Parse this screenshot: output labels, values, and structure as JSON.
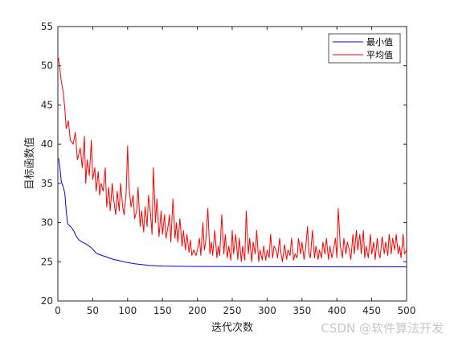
{
  "chart_data": {
    "type": "line",
    "title": "",
    "xlabel": "迭代次数",
    "ylabel": "目标函数值",
    "xlim": [
      0,
      500
    ],
    "ylim": [
      20,
      55
    ],
    "xticks": [
      "0",
      "50",
      "100",
      "150",
      "200",
      "250",
      "300",
      "350",
      "400",
      "450",
      "500"
    ],
    "yticks": [
      "20",
      "25",
      "30",
      "35",
      "40",
      "45",
      "50",
      "55"
    ],
    "grid": false,
    "legend_position": "top-right",
    "series": [
      {
        "name": "最小值",
        "color": "#0000ff",
        "points": [
          [
            1,
            38.2
          ],
          [
            3,
            37
          ],
          [
            5,
            35.2
          ],
          [
            8,
            34.5
          ],
          [
            10,
            33.7
          ],
          [
            12,
            31.5
          ],
          [
            14,
            29.8
          ],
          [
            17,
            29.6
          ],
          [
            20,
            29.3
          ],
          [
            23,
            28.9
          ],
          [
            26,
            28.3
          ],
          [
            30,
            27.8
          ],
          [
            35,
            27.5
          ],
          [
            40,
            27.3
          ],
          [
            45,
            27
          ],
          [
            50,
            26.6
          ],
          [
            55,
            26.1
          ],
          [
            60,
            25.9
          ],
          [
            70,
            25.6
          ],
          [
            80,
            25.3
          ],
          [
            90,
            25.1
          ],
          [
            100,
            24.9
          ],
          [
            110,
            24.75
          ],
          [
            120,
            24.65
          ],
          [
            130,
            24.55
          ],
          [
            140,
            24.5
          ],
          [
            150,
            24.45
          ],
          [
            170,
            24.42
          ],
          [
            200,
            24.4
          ],
          [
            250,
            24.38
          ],
          [
            300,
            24.37
          ],
          [
            400,
            24.35
          ],
          [
            500,
            24.35
          ]
        ]
      },
      {
        "name": "平均值",
        "color": "#ff0000",
        "points": [
          [
            1,
            51
          ],
          [
            3,
            49.5
          ],
          [
            5,
            48
          ],
          [
            8,
            46.5
          ],
          [
            10,
            44.5
          ],
          [
            12,
            42
          ],
          [
            15,
            43
          ],
          [
            18,
            40.5
          ],
          [
            22,
            40
          ],
          [
            25,
            41.5
          ],
          [
            28,
            38
          ],
          [
            32,
            39.5
          ],
          [
            35,
            37
          ],
          [
            38,
            41
          ],
          [
            40,
            35
          ],
          [
            42,
            38
          ],
          [
            45,
            36
          ],
          [
            48,
            40.5
          ],
          [
            50,
            35.5
          ],
          [
            53,
            37
          ],
          [
            55,
            34
          ],
          [
            58,
            36.5
          ],
          [
            60,
            33.5
          ],
          [
            62,
            35
          ],
          [
            65,
            34
          ],
          [
            68,
            37
          ],
          [
            70,
            32
          ],
          [
            73,
            34.5
          ],
          [
            75,
            31.5
          ],
          [
            78,
            35
          ],
          [
            80,
            33
          ],
          [
            83,
            31
          ],
          [
            85,
            34
          ],
          [
            88,
            31.5
          ],
          [
            90,
            35
          ],
          [
            93,
            32
          ],
          [
            95,
            31
          ],
          [
            98,
            34
          ],
          [
            100,
            39.8
          ],
          [
            102,
            34.5
          ],
          [
            105,
            32
          ],
          [
            108,
            33.5
          ],
          [
            110,
            30.5
          ],
          [
            113,
            31.5
          ],
          [
            115,
            34.5
          ],
          [
            118,
            29.5
          ],
          [
            120,
            31.5
          ],
          [
            123,
            28.8
          ],
          [
            125,
            32
          ],
          [
            128,
            29.5
          ],
          [
            130,
            33.5
          ],
          [
            133,
            31
          ],
          [
            135,
            28.5
          ],
          [
            137,
            37
          ],
          [
            140,
            30
          ],
          [
            142,
            33
          ],
          [
            145,
            28.2
          ],
          [
            148,
            31.5
          ],
          [
            150,
            28.5
          ],
          [
            153,
            31
          ],
          [
            155,
            28
          ],
          [
            158,
            29.5
          ],
          [
            160,
            31
          ],
          [
            162,
            27.5
          ],
          [
            165,
            33
          ],
          [
            168,
            28
          ],
          [
            170,
            30
          ],
          [
            172,
            27.5
          ],
          [
            175,
            30.5
          ],
          [
            178,
            27
          ],
          [
            180,
            29
          ],
          [
            183,
            26.5
          ],
          [
            185,
            28.5
          ],
          [
            188,
            26.2
          ],
          [
            190,
            27.8
          ],
          [
            192,
            25.8
          ],
          [
            195,
            26.5
          ],
          [
            198,
            25.8
          ],
          [
            200,
            26.5
          ],
          [
            203,
            28
          ],
          [
            205,
            25.8
          ],
          [
            208,
            30
          ],
          [
            210,
            26.5
          ],
          [
            212,
            27.5
          ],
          [
            215,
            31.8
          ],
          [
            218,
            26
          ],
          [
            220,
            27.5
          ],
          [
            222,
            25.8
          ],
          [
            225,
            29
          ],
          [
            228,
            25.5
          ],
          [
            230,
            27
          ],
          [
            232,
            25.8
          ],
          [
            235,
            31
          ],
          [
            238,
            26
          ],
          [
            240,
            28.5
          ],
          [
            243,
            25.5
          ],
          [
            245,
            27
          ],
          [
            248,
            25.2
          ],
          [
            250,
            29
          ],
          [
            252,
            26
          ],
          [
            255,
            28.5
          ],
          [
            258,
            25.3
          ],
          [
            260,
            28
          ],
          [
            263,
            25
          ],
          [
            265,
            27
          ],
          [
            268,
            25.2
          ],
          [
            270,
            31.5
          ],
          [
            273,
            26
          ],
          [
            275,
            28
          ],
          [
            278,
            25
          ],
          [
            280,
            27.5
          ],
          [
            283,
            26
          ],
          [
            285,
            29
          ],
          [
            288,
            25
          ],
          [
            290,
            26.5
          ],
          [
            293,
            25.2
          ],
          [
            295,
            27
          ],
          [
            298,
            25.2
          ],
          [
            300,
            26.5
          ],
          [
            303,
            25.5
          ],
          [
            305,
            28.5
          ],
          [
            308,
            25.5
          ],
          [
            310,
            27
          ],
          [
            313,
            26.5
          ],
          [
            315,
            25.5
          ],
          [
            318,
            28
          ],
          [
            320,
            26
          ],
          [
            322,
            25
          ],
          [
            325,
            27.2
          ],
          [
            328,
            25.3
          ],
          [
            330,
            26.5
          ],
          [
            333,
            25.8
          ],
          [
            335,
            28
          ],
          [
            338,
            25.2
          ],
          [
            340,
            26
          ],
          [
            343,
            25.5
          ],
          [
            345,
            28
          ],
          [
            348,
            26
          ],
          [
            350,
            27.5
          ],
          [
            353,
            25.3
          ],
          [
            355,
            26.5
          ],
          [
            358,
            29.5
          ],
          [
            360,
            26
          ],
          [
            362,
            25.5
          ],
          [
            365,
            29
          ],
          [
            368,
            25.5
          ],
          [
            370,
            27
          ],
          [
            373,
            25.3
          ],
          [
            375,
            26.5
          ],
          [
            378,
            25.5
          ],
          [
            380,
            27.5
          ],
          [
            383,
            26
          ],
          [
            385,
            28
          ],
          [
            388,
            25.3
          ],
          [
            390,
            27
          ],
          [
            393,
            25.5
          ],
          [
            395,
            26.5
          ],
          [
            398,
            28
          ],
          [
            400,
            25.5
          ],
          [
            402,
            31.8
          ],
          [
            405,
            27
          ],
          [
            408,
            25.5
          ],
          [
            410,
            28
          ],
          [
            413,
            26
          ],
          [
            415,
            27.5
          ],
          [
            418,
            26.5
          ],
          [
            420,
            25.3
          ],
          [
            423,
            28.5
          ],
          [
            425,
            26
          ],
          [
            428,
            29
          ],
          [
            430,
            26.5
          ],
          [
            433,
            28.5
          ],
          [
            435,
            26
          ],
          [
            438,
            29
          ],
          [
            440,
            25.5
          ],
          [
            442,
            27
          ],
          [
            445,
            25.5
          ],
          [
            448,
            28.5
          ],
          [
            450,
            26
          ],
          [
            453,
            27.5
          ],
          [
            455,
            25.3
          ],
          [
            458,
            28
          ],
          [
            460,
            26
          ],
          [
            462,
            25.5
          ],
          [
            465,
            28.2
          ],
          [
            468,
            26
          ],
          [
            470,
            27.5
          ],
          [
            473,
            25.8
          ],
          [
            475,
            28.5
          ],
          [
            478,
            26
          ],
          [
            480,
            28
          ],
          [
            483,
            26.5
          ],
          [
            485,
            28.5
          ],
          [
            488,
            26
          ],
          [
            490,
            27
          ],
          [
            492,
            25.5
          ],
          [
            495,
            28.5
          ],
          [
            497,
            26
          ],
          [
            500,
            26.5
          ]
        ]
      }
    ]
  },
  "watermark": "CSDN @软件算法开发"
}
